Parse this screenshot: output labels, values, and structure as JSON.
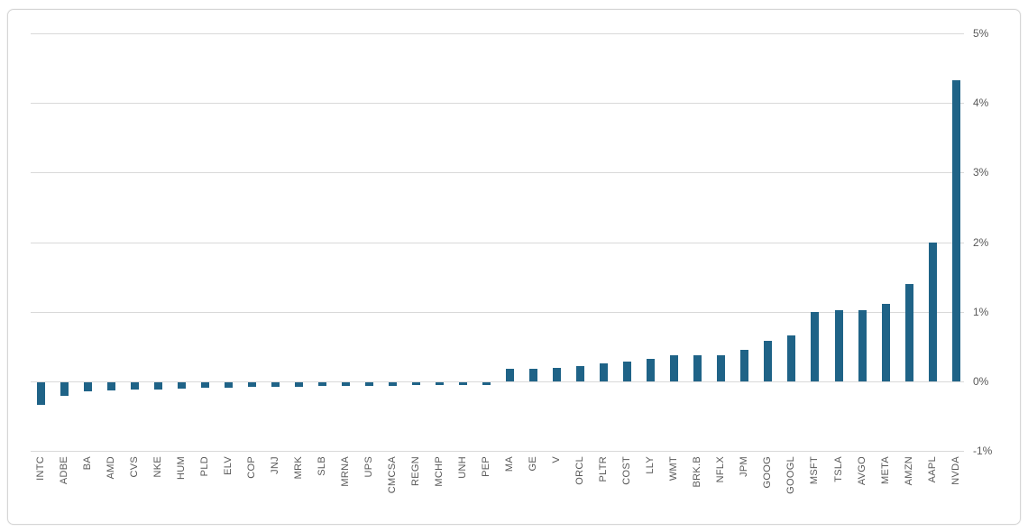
{
  "chart_data": {
    "type": "bar",
    "title": "",
    "xlabel": "",
    "ylabel": "",
    "unit": "%",
    "grid": true,
    "legend": false,
    "y_axis_side": "right",
    "ylim": [
      -1,
      5
    ],
    "y_ticks": [
      {
        "value": 5,
        "label": "5%"
      },
      {
        "value": 4,
        "label": "4%"
      },
      {
        "value": 3,
        "label": "3%"
      },
      {
        "value": 2,
        "label": "2%"
      },
      {
        "value": 1,
        "label": "1%"
      },
      {
        "value": 0,
        "label": "0%"
      },
      {
        "value": -1,
        "label": "-1%"
      }
    ],
    "categories": [
      "INTC",
      "ADBE",
      "BA",
      "AMD",
      "CVS",
      "NKE",
      "HUM",
      "PLD",
      "ELV",
      "COP",
      "JNJ",
      "MRK",
      "SLB",
      "MRNA",
      "UPS",
      "CMCSA",
      "REGN",
      "MCHP",
      "UNH",
      "PEP",
      "MA",
      "GE",
      "V",
      "ORCL",
      "PLTR",
      "COST",
      "LLY",
      "WMT",
      "BRK.B",
      "NFLX",
      "JPM",
      "GOOG",
      "GOOGL",
      "MSFT",
      "TSLA",
      "AVGO",
      "META",
      "AMZN",
      "AAPL",
      "NVDA"
    ],
    "values": [
      -0.32,
      -0.19,
      -0.13,
      -0.12,
      -0.11,
      -0.1,
      -0.09,
      -0.08,
      -0.08,
      -0.07,
      -0.06,
      -0.06,
      -0.05,
      -0.05,
      -0.05,
      -0.05,
      -0.04,
      -0.04,
      -0.04,
      -0.04,
      0.18,
      0.18,
      0.19,
      0.22,
      0.26,
      0.28,
      0.33,
      0.37,
      0.37,
      0.38,
      0.45,
      0.58,
      0.66,
      1.0,
      1.02,
      1.02,
      1.12,
      1.4,
      2.0,
      4.33
    ],
    "colors": {
      "bar": "#1F6387",
      "gridline": "#d9d9d9",
      "tick_label": "#595959",
      "card_border": "#d6d6d6",
      "background": "#ffffff"
    }
  }
}
